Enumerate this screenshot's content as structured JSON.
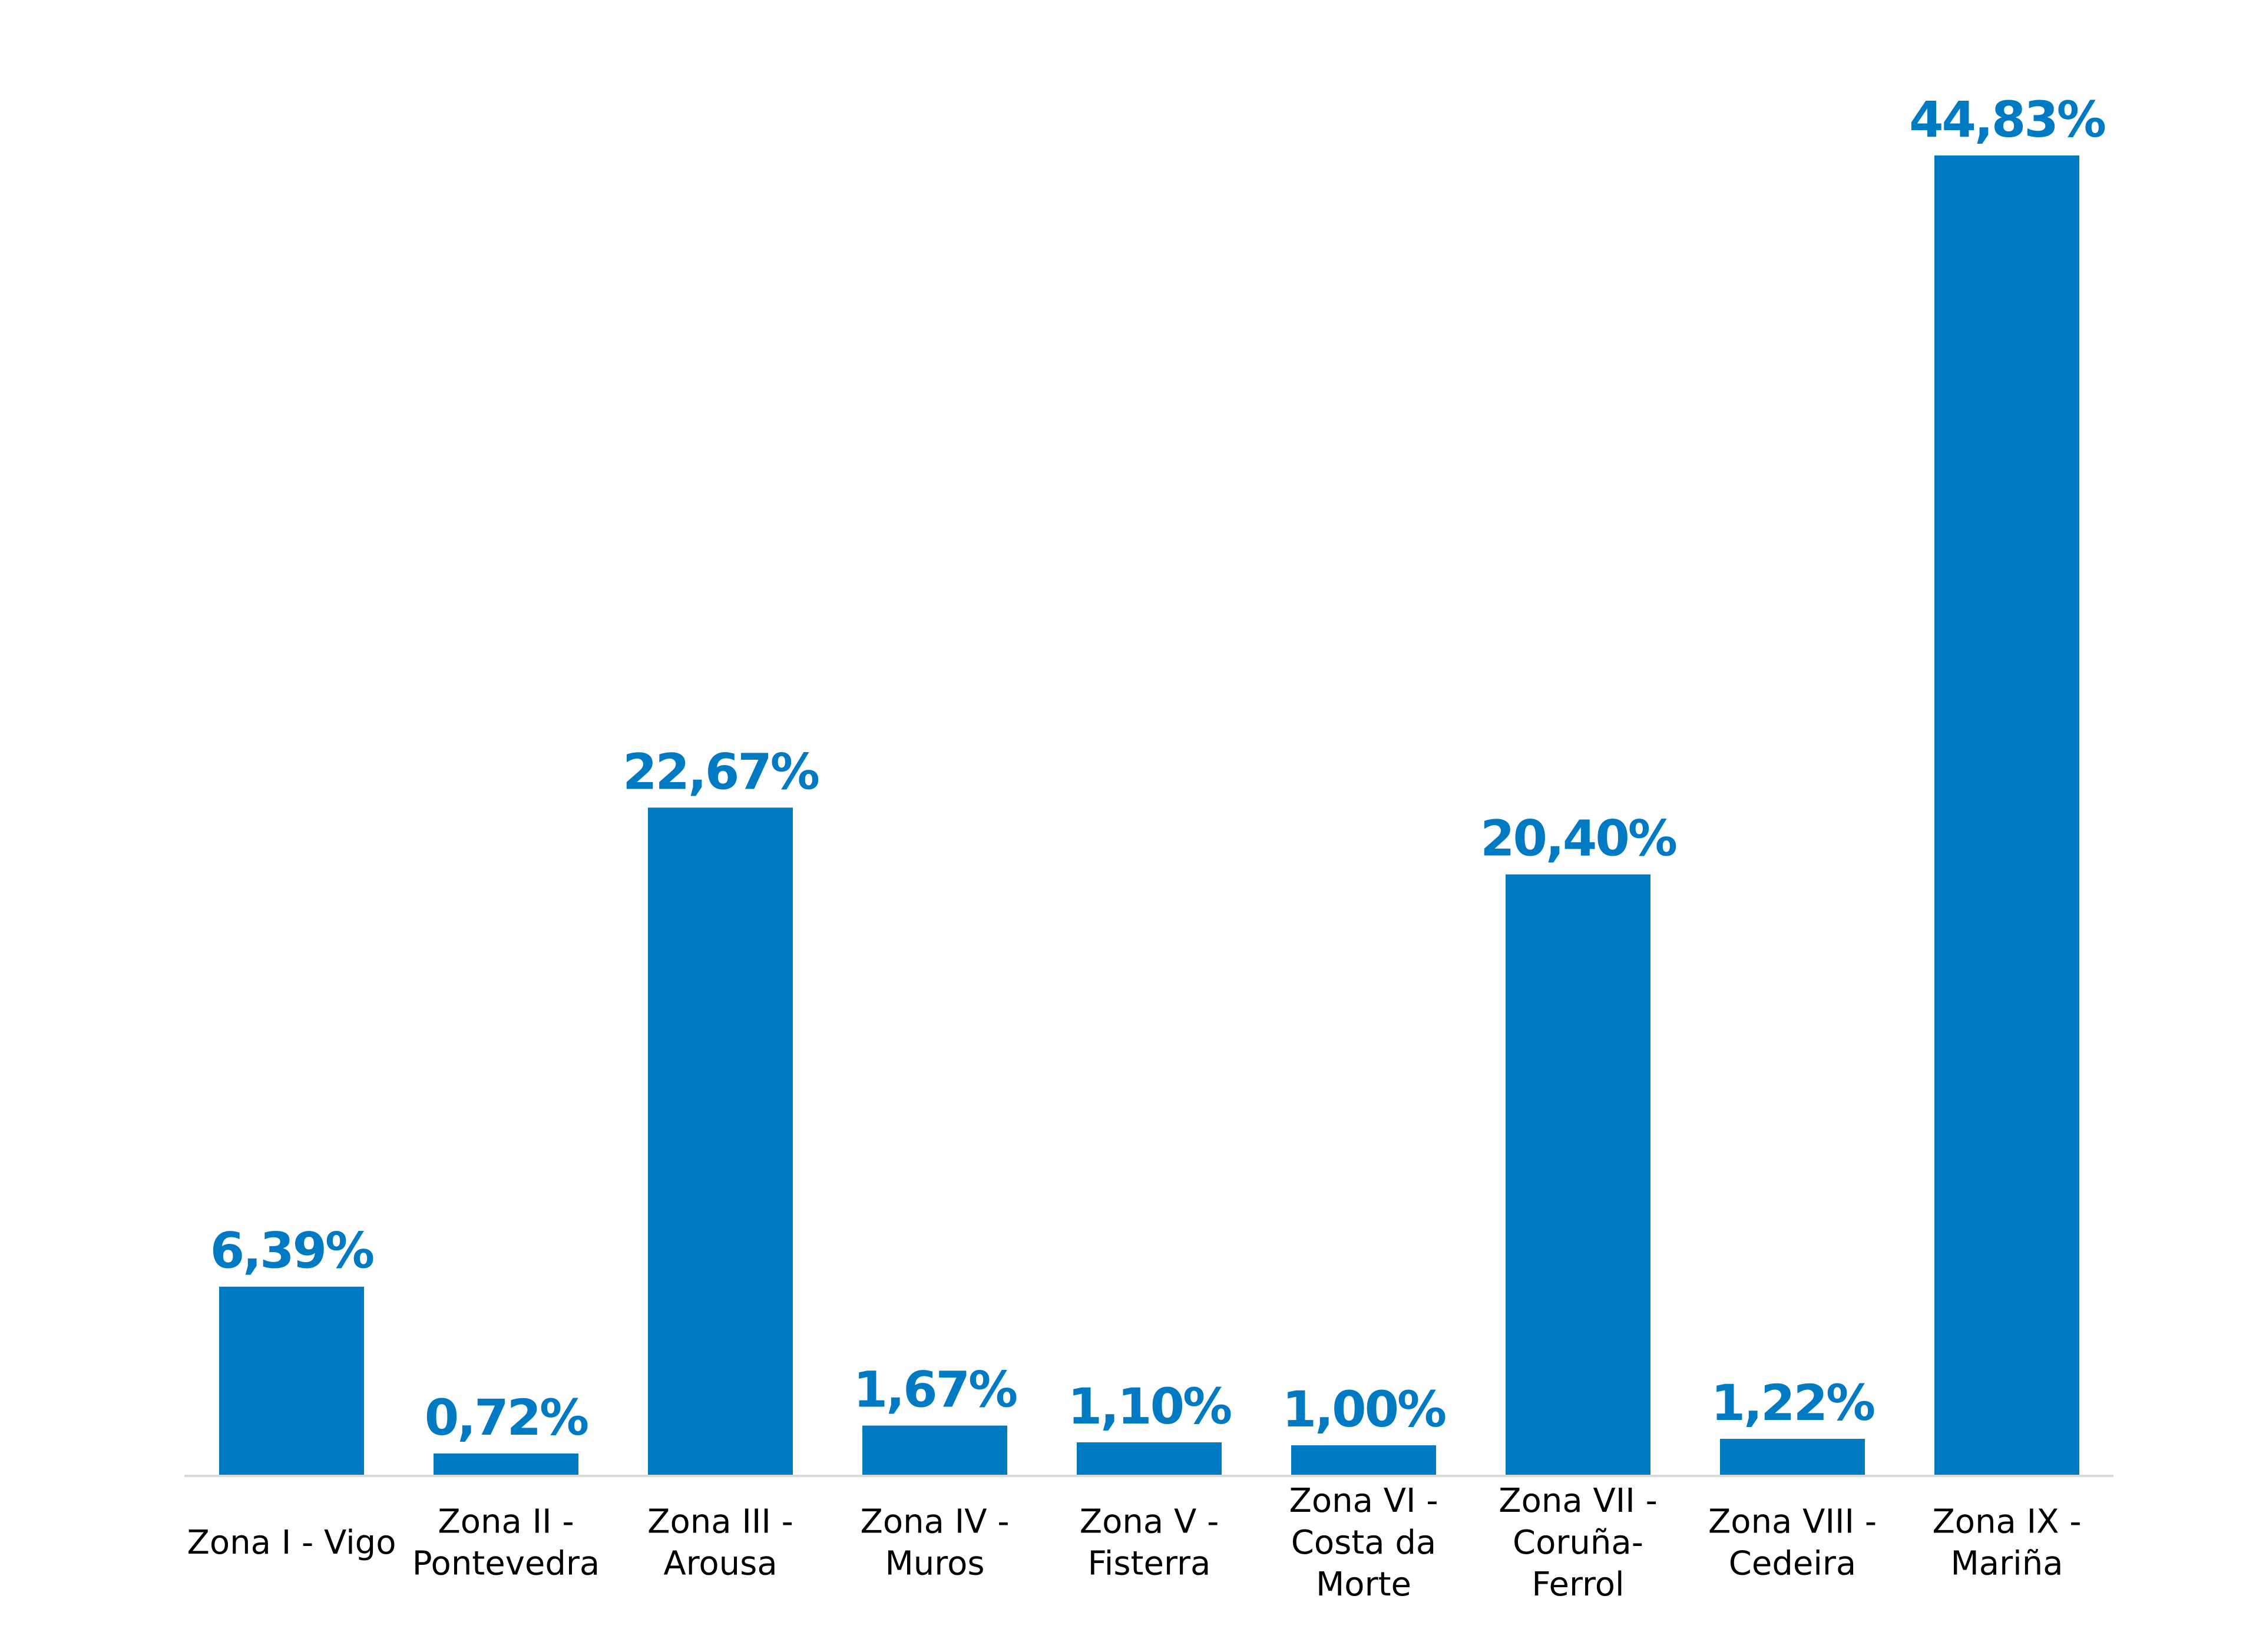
{
  "chart_data": {
    "type": "bar",
    "categories": [
      "Zona I - Vigo",
      "Zona II - Pontevedra",
      "Zona III - Arousa",
      "Zona IV - Muros",
      "Zona V - Fisterra",
      "Zona VI - Costa da Morte",
      "Zona VII - Coruña-Ferrol",
      "Zona VIII - Cedeira",
      "Zona IX - Mariña"
    ],
    "category_lines": [
      [
        "Zona I - Vigo"
      ],
      [
        "Zona II -",
        "Pontevedra"
      ],
      [
        "Zona III -",
        "Arousa"
      ],
      [
        "Zona IV -",
        "Muros"
      ],
      [
        "Zona V -",
        "Fisterra"
      ],
      [
        "Zona VI -",
        "Costa da",
        "Morte"
      ],
      [
        "Zona VII -",
        "Coruña-",
        "Ferrol"
      ],
      [
        "Zona VIII -",
        "Cedeira"
      ],
      [
        "Zona IX -",
        "Mariña"
      ]
    ],
    "values": [
      6.39,
      0.72,
      22.67,
      1.67,
      1.1,
      1.0,
      20.4,
      1.22,
      44.83
    ],
    "data_labels": [
      "6,39%",
      "0,72%",
      "22,67%",
      "1,67%",
      "1,10%",
      "1,00%",
      "20,40%",
      "1,22%",
      "44,83%"
    ],
    "title": "",
    "xlabel": "",
    "ylabel": "",
    "ylim": [
      0,
      44.83
    ],
    "grid": false,
    "legend": "none",
    "colors": {
      "bar": "#007AC3",
      "label": "#007AC3",
      "axis": "#D9D9D9"
    }
  }
}
